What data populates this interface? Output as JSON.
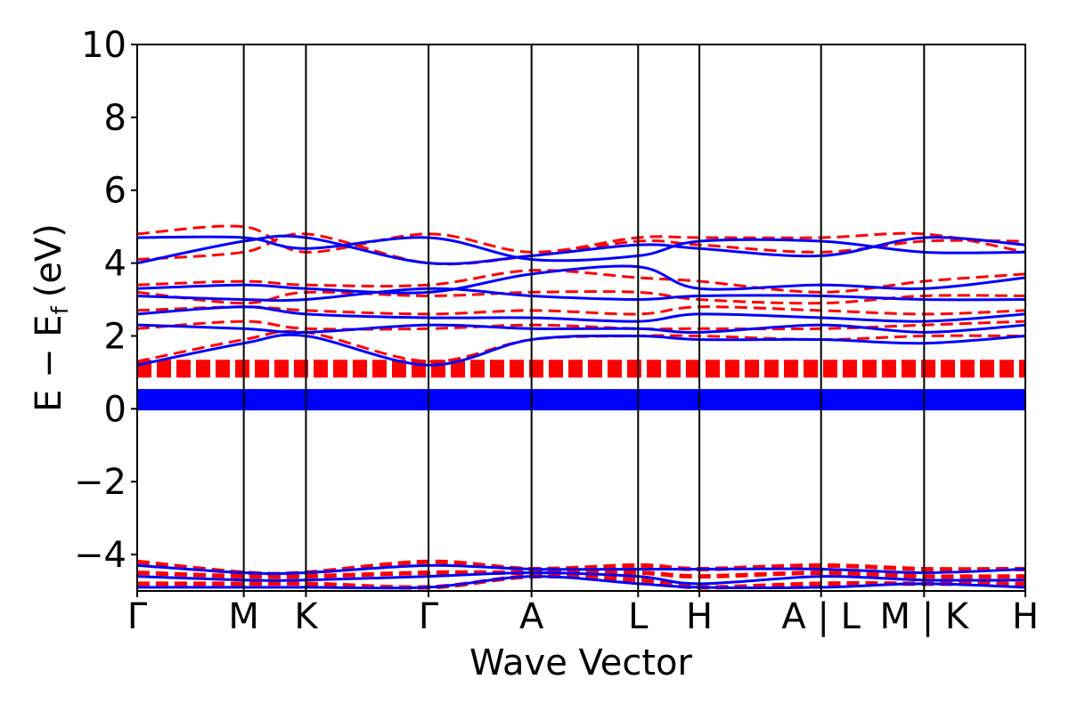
{
  "chart_data": {
    "type": "line",
    "xlabel": "Wave Vector",
    "ylabel": "E − E",
    "ylabel_subscript": "f",
    "ylabel_unit": "(eV)",
    "ylim": [
      -5,
      10
    ],
    "yticks": [
      -4,
      -2,
      0,
      2,
      4,
      6,
      8,
      10
    ],
    "ytick_labels": [
      "−4",
      "−2",
      "0",
      "2",
      "4",
      "6",
      "8",
      "10"
    ],
    "xlim": [
      0,
      100
    ],
    "high_symmetry_points": [
      {
        "label": "Γ",
        "x": 0
      },
      {
        "label": "M",
        "x": 12
      },
      {
        "label": "K",
        "x": 19
      },
      {
        "label": "Γ",
        "x": 32.8
      },
      {
        "label": "A",
        "x": 44.4
      },
      {
        "label": "L",
        "x": 56.4
      },
      {
        "label": "H",
        "x": 63.3
      },
      {
        "label": "A | L",
        "x": 77
      },
      {
        "label": "M | K",
        "x": 88.6
      },
      {
        "label": "H",
        "x": 100
      }
    ],
    "series": [
      {
        "color": "#0000ff",
        "style": "solid",
        "bands": [
          {
            "x": [
              0,
              100
            ],
            "y": [
              0.25,
              0.25
            ],
            "width": 24
          },
          {
            "x": [
              0,
              12,
              19,
              32.8,
              44.4,
              56.4,
              63.3,
              77,
              88.6,
              100
            ],
            "y": [
              4.0,
              4.6,
              4.7,
              4.0,
              4.2,
              4.5,
              4.4,
              4.2,
              4.7,
              4.5
            ],
            "width": 3
          },
          {
            "x": [
              0,
              12,
              19,
              32.8,
              44.4,
              56.4,
              63.3,
              77,
              88.6,
              100
            ],
            "y": [
              4.7,
              4.7,
              4.4,
              4.7,
              4.1,
              4.2,
              4.6,
              4.6,
              4.3,
              4.3
            ],
            "width": 3
          },
          {
            "x": [
              0,
              12,
              19,
              32.8,
              44.4,
              56.4,
              63.3,
              77,
              88.6,
              100
            ],
            "y": [
              3.3,
              3.4,
              3.3,
              3.2,
              3.7,
              3.9,
              3.3,
              3.4,
              3.3,
              3.6
            ],
            "width": 3
          },
          {
            "x": [
              0,
              12,
              19,
              32.8,
              44.4,
              56.4,
              63.3,
              77,
              88.6,
              100
            ],
            "y": [
              3.1,
              3.0,
              3.0,
              3.3,
              3.1,
              3.0,
              3.1,
              3.1,
              3.0,
              3.0
            ],
            "width": 3
          },
          {
            "x": [
              0,
              12,
              19,
              32.8,
              44.4,
              56.4,
              63.3,
              77,
              88.6,
              100
            ],
            "y": [
              2.6,
              2.8,
              2.6,
              2.5,
              2.5,
              2.4,
              2.6,
              2.5,
              2.4,
              2.6
            ],
            "width": 3
          },
          {
            "x": [
              0,
              12,
              19,
              32.8,
              44.4,
              56.4,
              63.3,
              77,
              88.6,
              100
            ],
            "y": [
              2.3,
              2.2,
              2.1,
              2.3,
              2.2,
              2.2,
              2.1,
              2.3,
              2.1,
              2.3
            ],
            "width": 3
          },
          {
            "x": [
              0,
              12,
              19,
              32.8,
              44.4,
              56.4,
              63.3,
              77,
              88.6,
              100
            ],
            "y": [
              1.2,
              1.8,
              2.0,
              1.2,
              1.9,
              2.0,
              1.9,
              1.9,
              1.8,
              2.0
            ],
            "width": 3
          },
          {
            "x": [
              0,
              12,
              19,
              32.8,
              44.4,
              56.4,
              63.3,
              77,
              88.6,
              100
            ],
            "y": [
              -4.3,
              -4.5,
              -4.5,
              -4.3,
              -4.4,
              -4.4,
              -4.4,
              -4.4,
              -4.5,
              -4.4
            ],
            "width": 3
          },
          {
            "x": [
              0,
              12,
              19,
              32.8,
              44.4,
              56.4,
              63.3,
              77,
              88.6,
              100
            ],
            "y": [
              -4.6,
              -4.7,
              -4.7,
              -4.6,
              -4.5,
              -4.6,
              -4.8,
              -4.6,
              -4.7,
              -4.7
            ],
            "width": 3
          },
          {
            "x": [
              0,
              12,
              19,
              32.8,
              44.4,
              56.4,
              63.3,
              77,
              88.6,
              100
            ],
            "y": [
              -4.9,
              -4.9,
              -4.9,
              -4.9,
              -4.6,
              -4.8,
              -4.9,
              -4.9,
              -4.8,
              -4.9
            ],
            "width": 3
          }
        ]
      },
      {
        "color": "#ff0000",
        "style": "dashed",
        "bands": [
          {
            "x": [
              0,
              100
            ],
            "y": [
              1.1,
              1.1
            ],
            "width": 20
          },
          {
            "x": [
              0,
              12,
              19,
              32.8,
              44.4,
              56.4,
              63.3,
              77,
              88.6,
              100
            ],
            "y": [
              4.1,
              4.3,
              4.8,
              4.0,
              4.2,
              4.6,
              4.5,
              4.3,
              4.6,
              4.6
            ],
            "width": 3
          },
          {
            "x": [
              0,
              12,
              19,
              32.8,
              44.4,
              56.4,
              63.3,
              77,
              88.6,
              100
            ],
            "y": [
              4.8,
              5.0,
              4.3,
              4.8,
              4.3,
              4.7,
              4.7,
              4.7,
              4.8,
              4.3
            ],
            "width": 3
          },
          {
            "x": [
              0,
              12,
              19,
              32.8,
              44.4,
              56.4,
              63.3,
              77,
              88.6,
              100
            ],
            "y": [
              3.4,
              3.5,
              3.4,
              3.4,
              3.8,
              3.6,
              3.5,
              3.2,
              3.5,
              3.7
            ],
            "width": 3
          },
          {
            "x": [
              0,
              12,
              19,
              32.8,
              44.4,
              56.4,
              63.3,
              77,
              88.6,
              100
            ],
            "y": [
              3.2,
              2.9,
              3.2,
              3.1,
              3.2,
              3.2,
              3.0,
              2.9,
              3.1,
              3.1
            ],
            "width": 3
          },
          {
            "x": [
              0,
              12,
              19,
              32.8,
              44.4,
              56.4,
              63.3,
              77,
              88.6,
              100
            ],
            "y": [
              2.7,
              2.8,
              2.7,
              2.6,
              2.7,
              2.6,
              2.8,
              2.7,
              2.6,
              2.7
            ],
            "width": 3
          },
          {
            "x": [
              0,
              12,
              19,
              32.8,
              44.4,
              56.4,
              63.3,
              77,
              88.6,
              100
            ],
            "y": [
              2.2,
              2.4,
              2.2,
              2.2,
              2.3,
              2.2,
              2.2,
              2.2,
              2.3,
              2.4
            ],
            "width": 3
          },
          {
            "x": [
              0,
              12,
              19,
              32.8,
              44.4,
              56.4,
              63.3,
              77,
              88.6,
              100
            ],
            "y": [
              1.3,
              1.9,
              2.1,
              1.3,
              1.9,
              2.0,
              2.0,
              1.9,
              2.0,
              2.0
            ],
            "width": 3
          },
          {
            "x": [
              0,
              12,
              19,
              32.8,
              44.4,
              56.4,
              63.3,
              77,
              88.6,
              100
            ],
            "y": [
              -4.2,
              -4.5,
              -4.5,
              -4.2,
              -4.4,
              -4.3,
              -4.4,
              -4.3,
              -4.4,
              -4.4
            ],
            "width": 5
          },
          {
            "x": [
              0,
              12,
              19,
              32.8,
              44.4,
              56.4,
              63.3,
              77,
              88.6,
              100
            ],
            "y": [
              -4.5,
              -4.6,
              -4.6,
              -4.5,
              -4.5,
              -4.5,
              -4.6,
              -4.5,
              -4.6,
              -4.6
            ],
            "width": 5
          },
          {
            "x": [
              0,
              12,
              19,
              32.8,
              44.4,
              56.4,
              63.3,
              77,
              88.6,
              100
            ],
            "y": [
              -4.8,
              -4.8,
              -4.8,
              -4.9,
              -4.6,
              -4.7,
              -4.9,
              -4.8,
              -4.8,
              -4.8
            ],
            "width": 5
          }
        ]
      }
    ]
  }
}
